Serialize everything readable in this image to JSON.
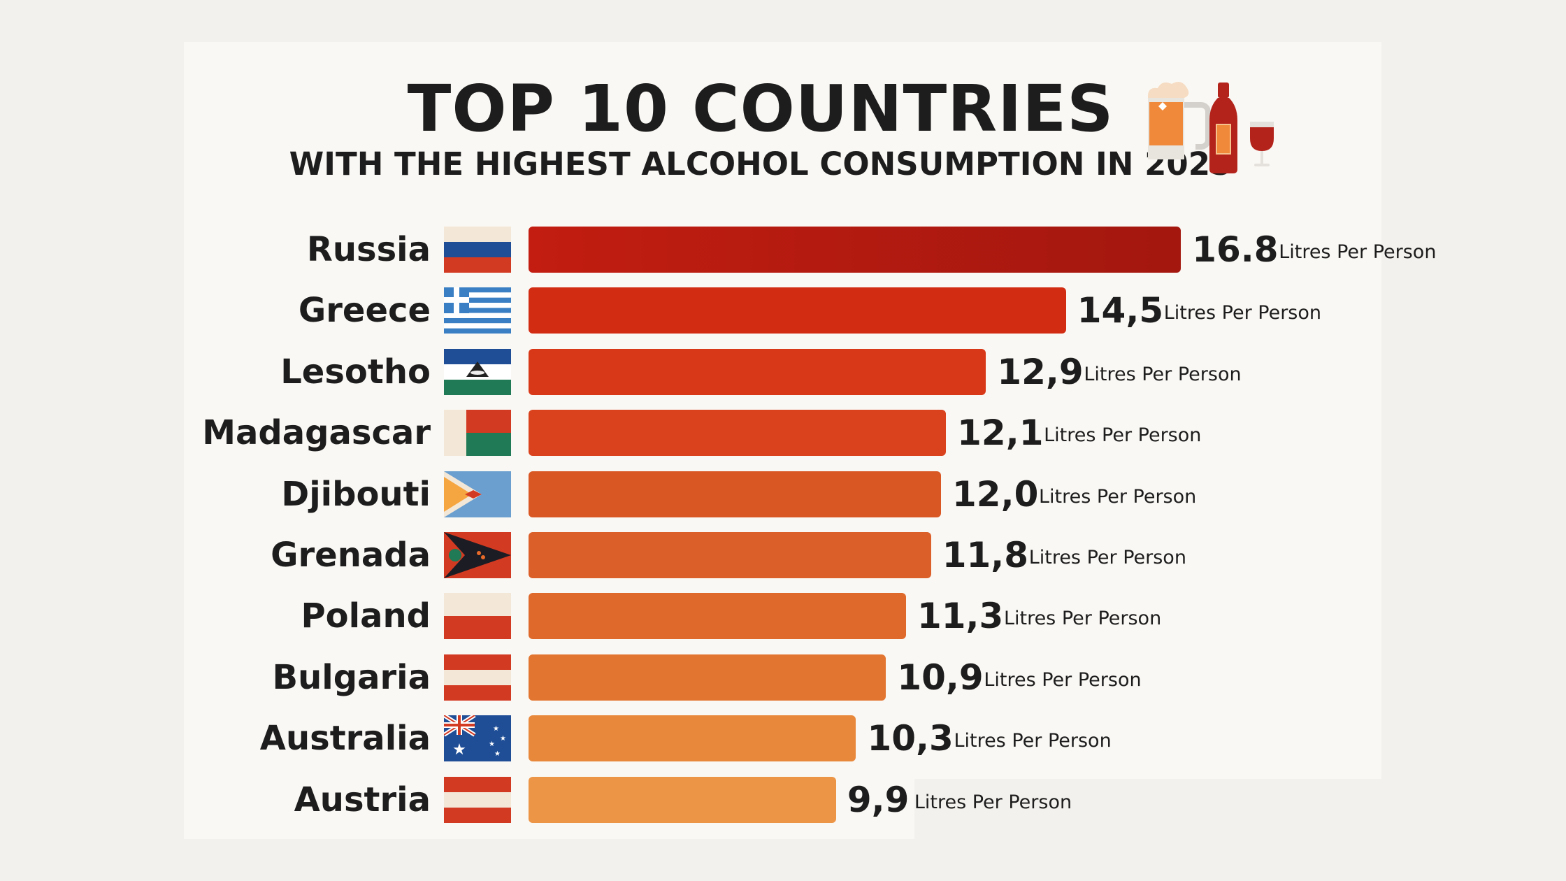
{
  "chart_data": {
    "type": "bar",
    "orientation": "horizontal",
    "title": "TOP 10 COUNTRIES",
    "subtitle": "WITH THE HIGHEST ALCOHOL CONSUMPTION IN 2025",
    "unit_label": "Litres Per Person",
    "categories": [
      "Russia",
      "Greece",
      "Lesotho",
      "Madagascar",
      "Djibouti",
      "Grenada",
      "Poland",
      "Bulgaria",
      "Australia",
      "Austria"
    ],
    "values": [
      16.8,
      14.5,
      12.9,
      12.1,
      12.0,
      11.8,
      11.3,
      10.9,
      10.3,
      9.9
    ],
    "value_labels": [
      "16.8",
      "14,5",
      "12,9",
      "12,1",
      "12,0",
      "11,8",
      "11,3",
      "10,9",
      "10,3",
      "9,9"
    ],
    "flags": [
      "russia-flag",
      "greece-flag",
      "lesotho-flag",
      "madagascar-flag",
      "djibouti-flag",
      "grenada-flag",
      "poland-flag",
      "bulgaria-flag",
      "australia-flag",
      "austria-flag"
    ],
    "bar_colors": [
      "#c21d10",
      "#d92d14",
      "#df3a18",
      "#e0441e",
      "#e05a24",
      "#e2622a",
      "#e56c2c",
      "#e97a32",
      "#ef8c3c",
      "#f39a48"
    ],
    "grid": false,
    "legend": "none",
    "decorative_icons": [
      "beer-mug-icon",
      "wine-bottle-icon",
      "wine-glass-icon"
    ]
  }
}
